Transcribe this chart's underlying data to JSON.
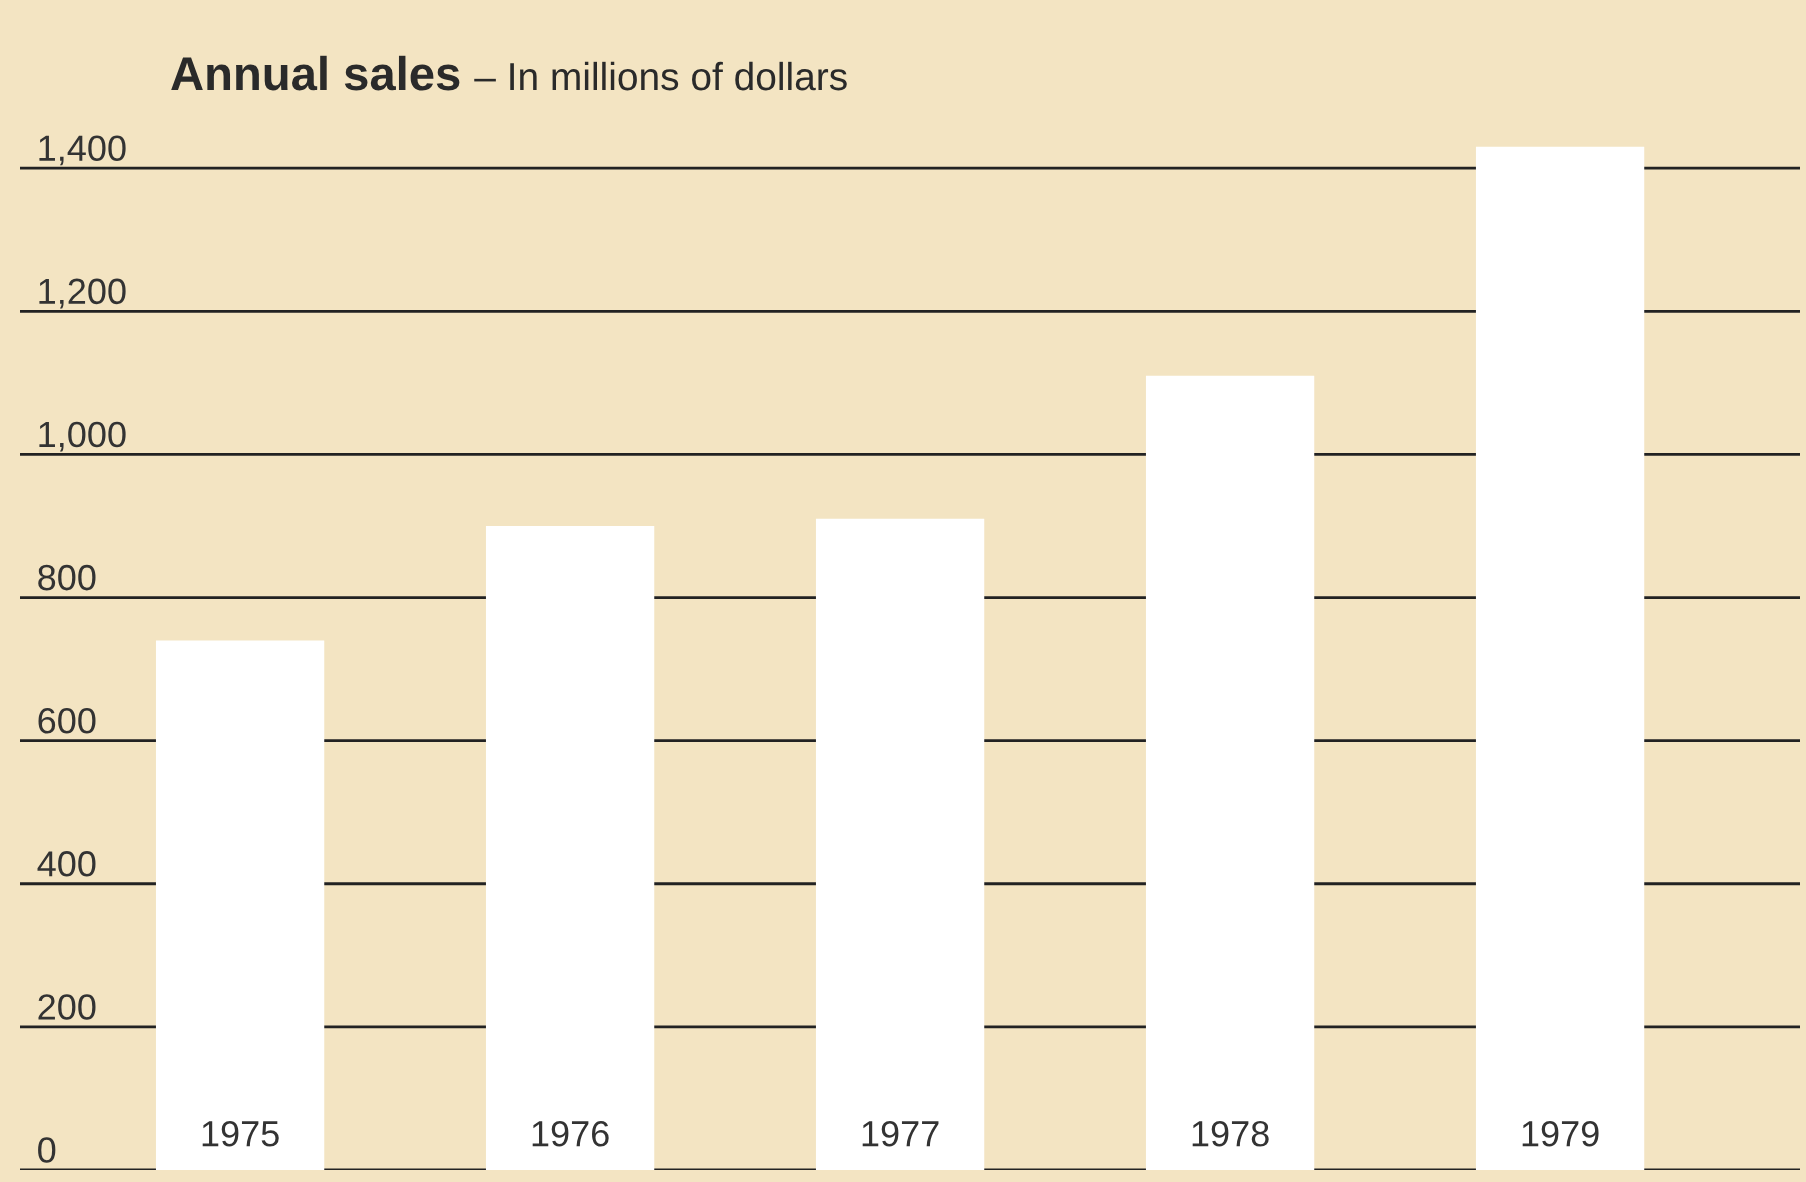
{
  "chart_data": {
    "type": "bar",
    "title": "Annual sales",
    "subtitle": "– In millions of dollars",
    "categories": [
      "1975",
      "1976",
      "1977",
      "1978",
      "1979"
    ],
    "values": [
      740,
      900,
      910,
      1110,
      1430
    ],
    "color": "#ffffff",
    "ylim": [
      0,
      1635
    ],
    "yticks": [
      0,
      {
        "value": 200,
        "label": "200"
      },
      {
        "value": 400,
        "label": "400"
      },
      {
        "value": 600,
        "label": "600"
      },
      {
        "value": 800,
        "label": "800"
      },
      {
        "value": 1000,
        "label": "1,000"
      },
      {
        "value": 1200,
        "label": "1,200"
      },
      {
        "value": 1400,
        "label": "1,400"
      }
    ],
    "grid": "y"
  }
}
